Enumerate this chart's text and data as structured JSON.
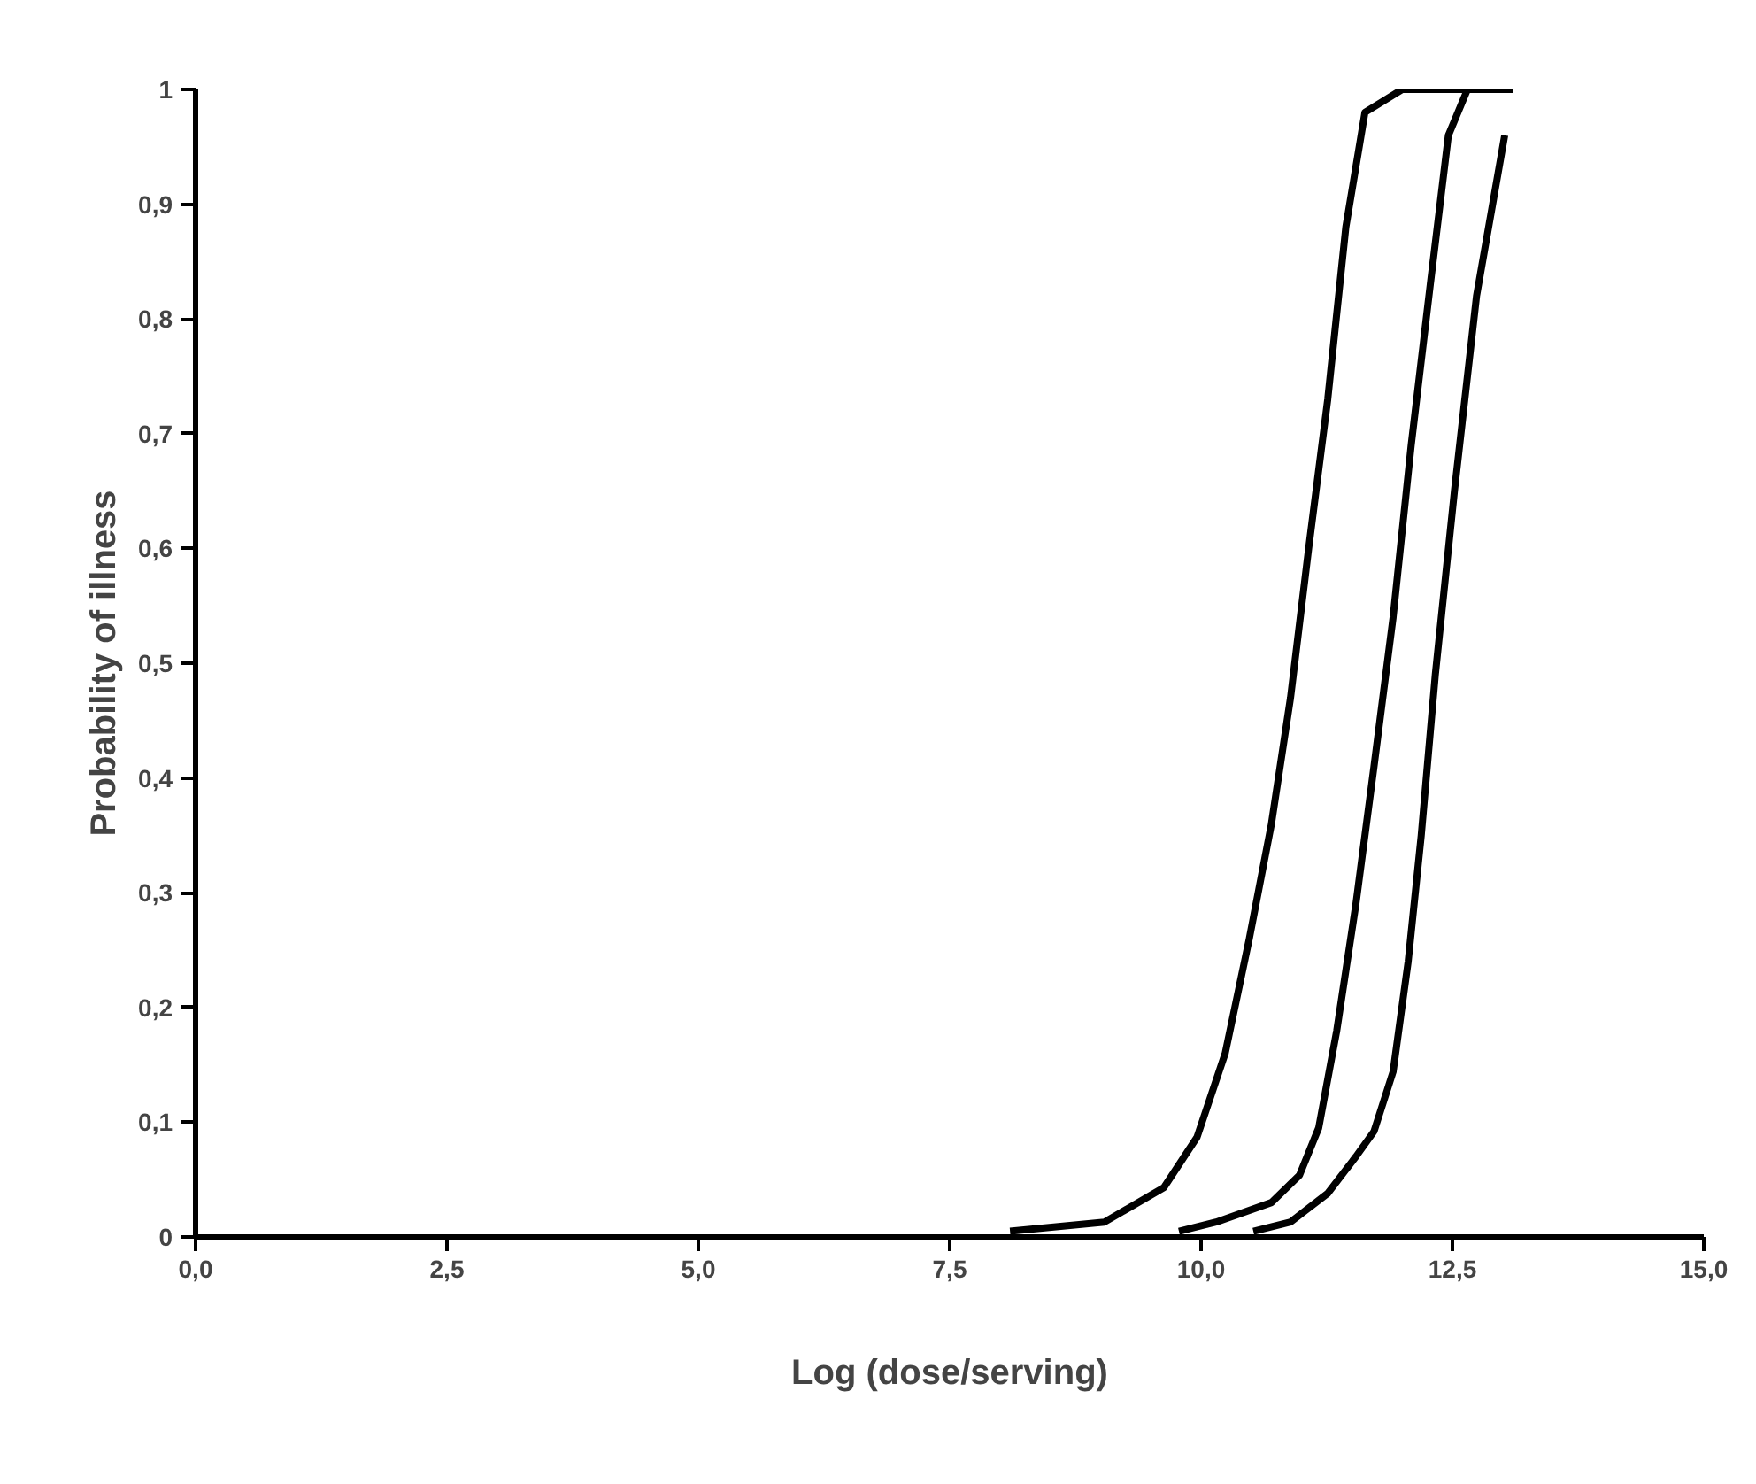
{
  "chart_data": {
    "type": "line",
    "xlabel": "Log (dose/serving)",
    "ylabel": "Probability of illness",
    "series": [
      {
        "color": "#000000",
        "x": [
          8.1,
          9.04,
          9.63,
          9.96,
          10.24,
          10.48,
          10.7,
          10.89,
          11.07,
          11.26,
          11.44,
          11.63,
          12.0,
          13.1
        ],
        "values": [
          0.005,
          0.013,
          0.043,
          0.087,
          0.16,
          0.26,
          0.36,
          0.47,
          0.6,
          0.73,
          0.88,
          0.98,
          1.0,
          1.0
        ]
      },
      {
        "color": "#000000",
        "x": [
          9.78,
          10.15,
          10.7,
          10.98,
          11.17,
          11.35,
          11.54,
          11.72,
          11.91,
          12.09,
          12.28,
          12.46,
          12.65,
          13.02
        ],
        "values": [
          0.005,
          0.013,
          0.03,
          0.054,
          0.095,
          0.18,
          0.29,
          0.41,
          0.54,
          0.69,
          0.83,
          0.96,
          1.0,
          1.0
        ]
      },
      {
        "color": "#000000",
        "x": [
          10.52,
          10.89,
          11.26,
          11.54,
          11.72,
          11.91,
          12.06,
          12.19,
          12.33,
          12.52,
          12.74,
          13.02
        ],
        "values": [
          0.005,
          0.013,
          0.038,
          0.07,
          0.092,
          0.144,
          0.24,
          0.35,
          0.49,
          0.65,
          0.82,
          0.96
        ]
      }
    ],
    "xlim": [
      0,
      15
    ],
    "ylim": [
      0,
      1
    ],
    "xticks": [
      {
        "value": 0,
        "label": "0,0"
      },
      {
        "value": 2.5,
        "label": "2,5"
      },
      {
        "value": 5,
        "label": "5,0"
      },
      {
        "value": 7.5,
        "label": "7,5"
      },
      {
        "value": 10,
        "label": "10,0"
      },
      {
        "value": 12.5,
        "label": "12,5"
      },
      {
        "value": 15,
        "label": "15,0"
      }
    ],
    "yticks": [
      0,
      {
        "value": 0.1,
        "label": "0,1"
      },
      {
        "value": 0.2,
        "label": "0,2"
      },
      {
        "value": 0.3,
        "label": "0,3"
      },
      {
        "value": 0.4,
        "label": "0,4"
      },
      {
        "value": 0.5,
        "label": "0,5"
      },
      {
        "value": 0.6,
        "label": "0,6"
      },
      {
        "value": 0.7,
        "label": "0,7"
      },
      {
        "value": 0.8,
        "label": "0,8"
      },
      {
        "value": 0.9,
        "label": "0,9"
      },
      1
    ],
    "marker": "none",
    "line_style": "solid"
  }
}
